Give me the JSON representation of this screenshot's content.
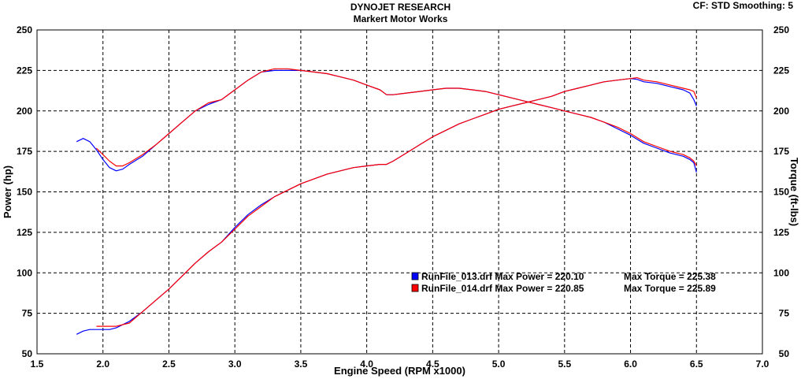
{
  "header": {
    "title": "DYNOJET RESEARCH",
    "subtitle": "Markert Motor Works",
    "cf_info": "CF: STD  Smoothing: 5"
  },
  "chart_data": {
    "type": "line",
    "xlabel": "Engine Speed (RPM x1000)",
    "ylabel_left": "Power (hp)",
    "ylabel_right": "Torque (ft-lbs)",
    "xlim": [
      1.5,
      7.0
    ],
    "ylim": [
      50,
      250
    ],
    "x_ticks": [
      "1.5",
      "2.0",
      "2.5",
      "3.0",
      "3.5",
      "4.0",
      "4.5",
      "5.0",
      "5.5",
      "6.0",
      "6.5",
      "7.0"
    ],
    "y_ticks": [
      "50",
      "75",
      "100",
      "125",
      "150",
      "175",
      "200",
      "225",
      "250"
    ],
    "grid": true,
    "legend_placement": "center-right",
    "series": [
      {
        "name": "RunFile_013.drf",
        "color": "#0000ff",
        "legend_text": "RunFile_013.drf Max Power = 220.10",
        "legend_torque": "Max Torque = 225.38",
        "power": {
          "x": [
            1.8,
            1.85,
            1.9,
            2.0,
            2.05,
            2.1,
            2.2,
            2.3,
            2.4,
            2.5,
            2.6,
            2.7,
            2.8,
            2.9,
            3.0,
            3.1,
            3.2,
            3.3,
            3.4,
            3.5,
            3.6,
            3.7,
            3.8,
            3.9,
            4.0,
            4.1,
            4.15,
            4.2,
            4.3,
            4.4,
            4.5,
            4.6,
            4.7,
            4.8,
            4.9,
            5.0,
            5.1,
            5.2,
            5.3,
            5.4,
            5.5,
            5.6,
            5.7,
            5.8,
            5.9,
            6.0,
            6.05,
            6.1,
            6.2,
            6.3,
            6.4,
            6.45,
            6.48,
            6.5
          ],
          "y": [
            62,
            64,
            65,
            65,
            65,
            66,
            70,
            76,
            83,
            90,
            98,
            106,
            113,
            119,
            128,
            136,
            142,
            147,
            151,
            155,
            158,
            161,
            163,
            165,
            166,
            167,
            167,
            169,
            174,
            179,
            184,
            188,
            192,
            195,
            198,
            201,
            203,
            205,
            207,
            209,
            212,
            214,
            216,
            218,
            219,
            220,
            219.5,
            218,
            217,
            215,
            213,
            211,
            207,
            203
          ]
        },
        "torque": {
          "x": [
            1.8,
            1.85,
            1.9,
            1.95,
            2.0,
            2.05,
            2.1,
            2.15,
            2.2,
            2.3,
            2.4,
            2.5,
            2.6,
            2.7,
            2.8,
            2.9,
            3.0,
            3.1,
            3.2,
            3.3,
            3.4,
            3.5,
            3.6,
            3.7,
            3.8,
            3.9,
            4.0,
            4.1,
            4.15,
            4.2,
            4.3,
            4.4,
            4.5,
            4.6,
            4.7,
            4.8,
            4.9,
            5.0,
            5.1,
            5.2,
            5.3,
            5.4,
            5.5,
            5.6,
            5.7,
            5.8,
            5.9,
            6.0,
            6.1,
            6.2,
            6.3,
            6.4,
            6.45,
            6.48,
            6.5
          ],
          "y": [
            181,
            183,
            181,
            176,
            170,
            165,
            163,
            164,
            167,
            172,
            179,
            186,
            193,
            200,
            204,
            207,
            213,
            219,
            224,
            225,
            225,
            225,
            224,
            223,
            221,
            219,
            216,
            213,
            210,
            210,
            211,
            212,
            213,
            214,
            214,
            213,
            212,
            210,
            208,
            206,
            204,
            202,
            200,
            198,
            196,
            193,
            189,
            185,
            180,
            177,
            174,
            172,
            170,
            168,
            162
          ]
        }
      },
      {
        "name": "RunFile_014.drf",
        "color": "#ff0000",
        "legend_text": "RunFile_014.drf Max Power = 220.85",
        "legend_torque": "Max Torque = 225.89",
        "power": {
          "x": [
            1.95,
            2.0,
            2.1,
            2.2,
            2.3,
            2.4,
            2.5,
            2.6,
            2.7,
            2.8,
            2.9,
            3.0,
            3.1,
            3.2,
            3.3,
            3.4,
            3.5,
            3.6,
            3.7,
            3.8,
            3.9,
            4.0,
            4.1,
            4.15,
            4.2,
            4.3,
            4.4,
            4.5,
            4.6,
            4.7,
            4.8,
            4.9,
            5.0,
            5.1,
            5.2,
            5.3,
            5.4,
            5.5,
            5.6,
            5.7,
            5.8,
            5.9,
            6.0,
            6.05,
            6.1,
            6.2,
            6.3,
            6.4,
            6.45,
            6.48,
            6.5
          ],
          "y": [
            67,
            67,
            67,
            69,
            76,
            83,
            90,
            98,
            106,
            113,
            119,
            127,
            135,
            141,
            147,
            151,
            155,
            158,
            161,
            163,
            165,
            166,
            167,
            167,
            169,
            174,
            179,
            184,
            188,
            192,
            195,
            198,
            201,
            203,
            205,
            207,
            209,
            212,
            214,
            216,
            218,
            219,
            220,
            220.5,
            219,
            218,
            216,
            214,
            213,
            212,
            208
          ]
        },
        "torque": {
          "x": [
            1.95,
            2.0,
            2.05,
            2.1,
            2.15,
            2.2,
            2.3,
            2.4,
            2.5,
            2.6,
            2.7,
            2.8,
            2.9,
            3.0,
            3.1,
            3.2,
            3.3,
            3.4,
            3.5,
            3.6,
            3.7,
            3.8,
            3.9,
            4.0,
            4.1,
            4.15,
            4.2,
            4.3,
            4.4,
            4.5,
            4.6,
            4.7,
            4.8,
            4.9,
            5.0,
            5.1,
            5.2,
            5.3,
            5.4,
            5.5,
            5.6,
            5.7,
            5.8,
            5.9,
            6.0,
            6.1,
            6.2,
            6.3,
            6.4,
            6.45,
            6.48,
            6.5
          ],
          "y": [
            177,
            173,
            169,
            166,
            166,
            168,
            173,
            179,
            186,
            193,
            200,
            205,
            207,
            213,
            219,
            224,
            226,
            226,
            225,
            224,
            223,
            221,
            219,
            216,
            213,
            210,
            210,
            211,
            212,
            213,
            214,
            214,
            213,
            212,
            210,
            208,
            206,
            204,
            202,
            200,
            198,
            196,
            193,
            190,
            186,
            181,
            178,
            175,
            173,
            171,
            169,
            166
          ]
        }
      }
    ]
  }
}
